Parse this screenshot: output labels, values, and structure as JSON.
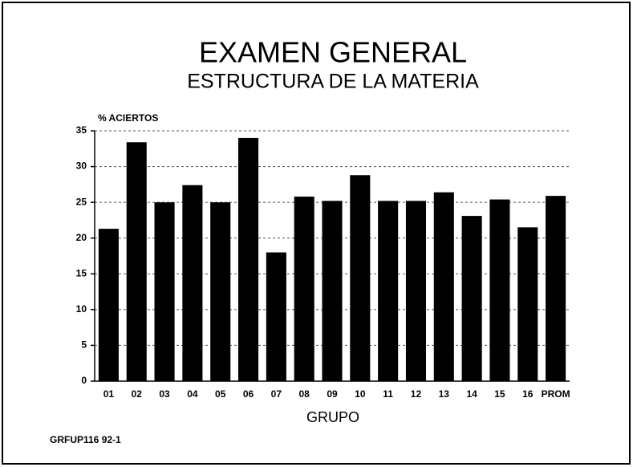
{
  "chart_data": {
    "type": "bar",
    "title": "EXAMEN GENERAL",
    "subtitle": "ESTRUCTURA DE LA MATERIA",
    "y_label": "% ACIERTOS",
    "x_label": "GRUPO",
    "footnote": "GRFUP116 92-1",
    "categories": [
      "01",
      "02",
      "03",
      "04",
      "05",
      "06",
      "07",
      "08",
      "09",
      "10",
      "11",
      "12",
      "13",
      "14",
      "15",
      "16",
      "PROM"
    ],
    "values": [
      21.3,
      33.4,
      25,
      27.4,
      25,
      34,
      18,
      25.8,
      25.2,
      28.8,
      25.2,
      25.2,
      26.4,
      23.1,
      25.4,
      21.5,
      25.9
    ],
    "color": "#000000",
    "ylim": [
      0,
      35
    ],
    "yticks": [
      0,
      5,
      10,
      15,
      20,
      25,
      30,
      35
    ],
    "grid": true
  }
}
